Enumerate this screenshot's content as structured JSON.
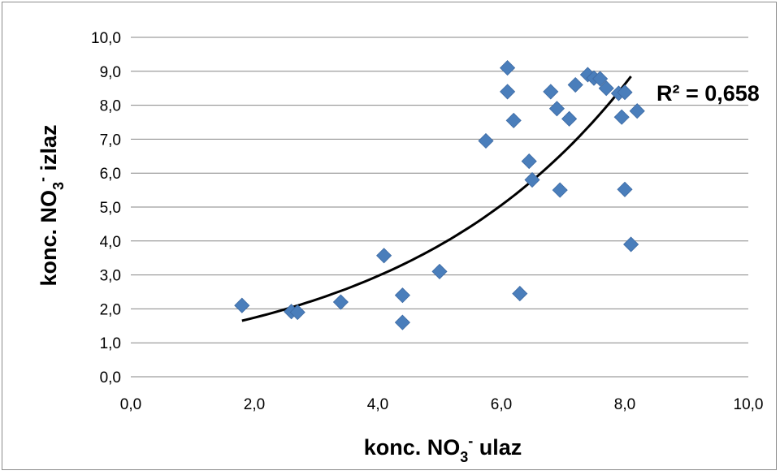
{
  "chart_data": {
    "type": "scatter",
    "xlabel": {
      "main": "konc. NO",
      "sub": "3",
      "sup": "-",
      "rest": " ulaz"
    },
    "ylabel": {
      "main": "konc. NO",
      "sub": "3",
      "sup": "-",
      "rest": " izlaz"
    },
    "xlim": [
      0,
      10
    ],
    "ylim": [
      0,
      10
    ],
    "x_ticks": [
      "0,0",
      "2,0",
      "4,0",
      "6,0",
      "8,0",
      "10,0"
    ],
    "y_ticks": [
      "0,0",
      "1,0",
      "2,0",
      "3,0",
      "4,0",
      "5,0",
      "6,0",
      "7,0",
      "8,0",
      "9,0",
      "10,0"
    ],
    "grid": "horizontal",
    "marker": "diamond",
    "colors": {
      "points": "#4a7ebb",
      "trendline": "#000000",
      "grid": "#868686"
    },
    "points": [
      [
        1.8,
        2.1
      ],
      [
        2.6,
        1.92
      ],
      [
        2.7,
        1.9
      ],
      [
        3.4,
        2.2
      ],
      [
        4.1,
        3.57
      ],
      [
        4.4,
        2.4
      ],
      [
        4.4,
        1.6
      ],
      [
        5.0,
        3.1
      ],
      [
        5.75,
        6.95
      ],
      [
        6.1,
        9.1
      ],
      [
        6.1,
        8.4
      ],
      [
        6.2,
        7.55
      ],
      [
        6.3,
        2.45
      ],
      [
        6.45,
        6.35
      ],
      [
        6.5,
        5.8
      ],
      [
        6.8,
        8.4
      ],
      [
        6.9,
        7.9
      ],
      [
        6.95,
        5.5
      ],
      [
        7.1,
        7.6
      ],
      [
        7.2,
        8.6
      ],
      [
        7.4,
        8.9
      ],
      [
        7.5,
        8.8
      ],
      [
        7.6,
        8.78
      ],
      [
        7.7,
        8.5
      ],
      [
        7.9,
        8.35
      ],
      [
        7.95,
        7.65
      ],
      [
        8.0,
        8.38
      ],
      [
        8.0,
        5.52
      ],
      [
        8.1,
        3.9
      ],
      [
        8.2,
        7.83
      ]
    ],
    "trendline": {
      "type": "exponential",
      "x_range": [
        1.8,
        8.1
      ],
      "y_start": 1.65,
      "y_end": 8.85
    },
    "annotation": "R² = 0,658"
  }
}
